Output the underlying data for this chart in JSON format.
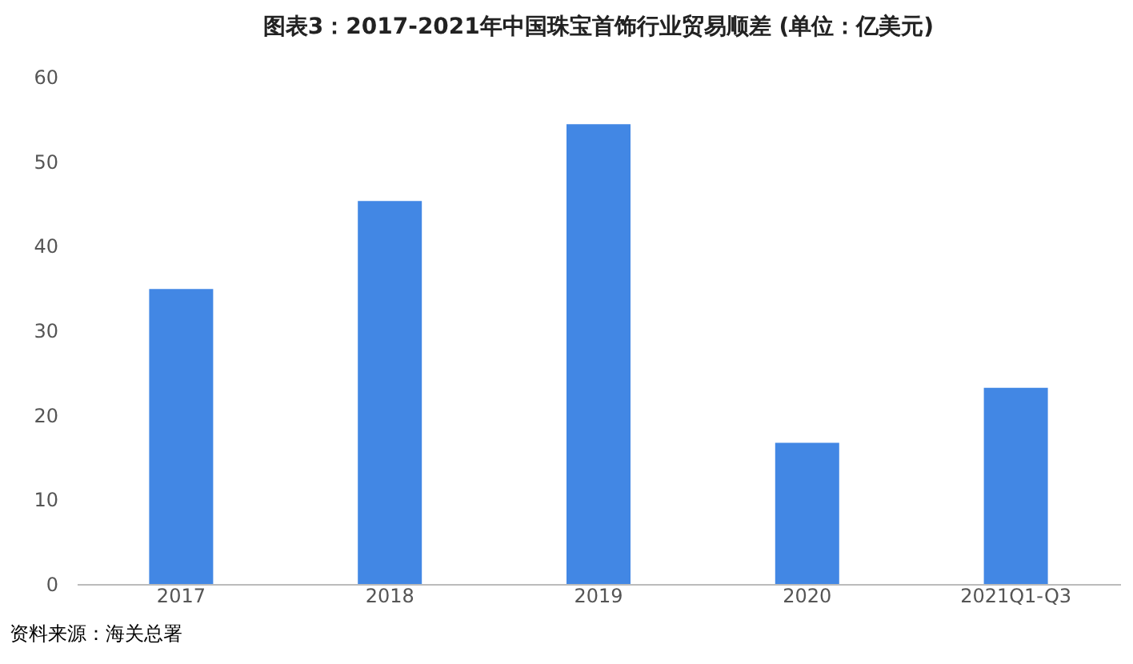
{
  "chart_data": {
    "type": "bar",
    "title": "图表3：2017-2021年中国珠宝首饰行业贸易顺差 (单位：亿美元)",
    "categories": [
      "2017",
      "2018",
      "2019",
      "2020",
      "2021Q1-Q3"
    ],
    "values": [
      34.9,
      45.3,
      54.4,
      16.7,
      23.2
    ],
    "color": "#4287e4",
    "ylim": [
      0,
      60
    ],
    "yticks": [
      0,
      10,
      20,
      30,
      40,
      50,
      60
    ],
    "grid": false,
    "annotations": [
      "资料来源：海关总署"
    ]
  }
}
